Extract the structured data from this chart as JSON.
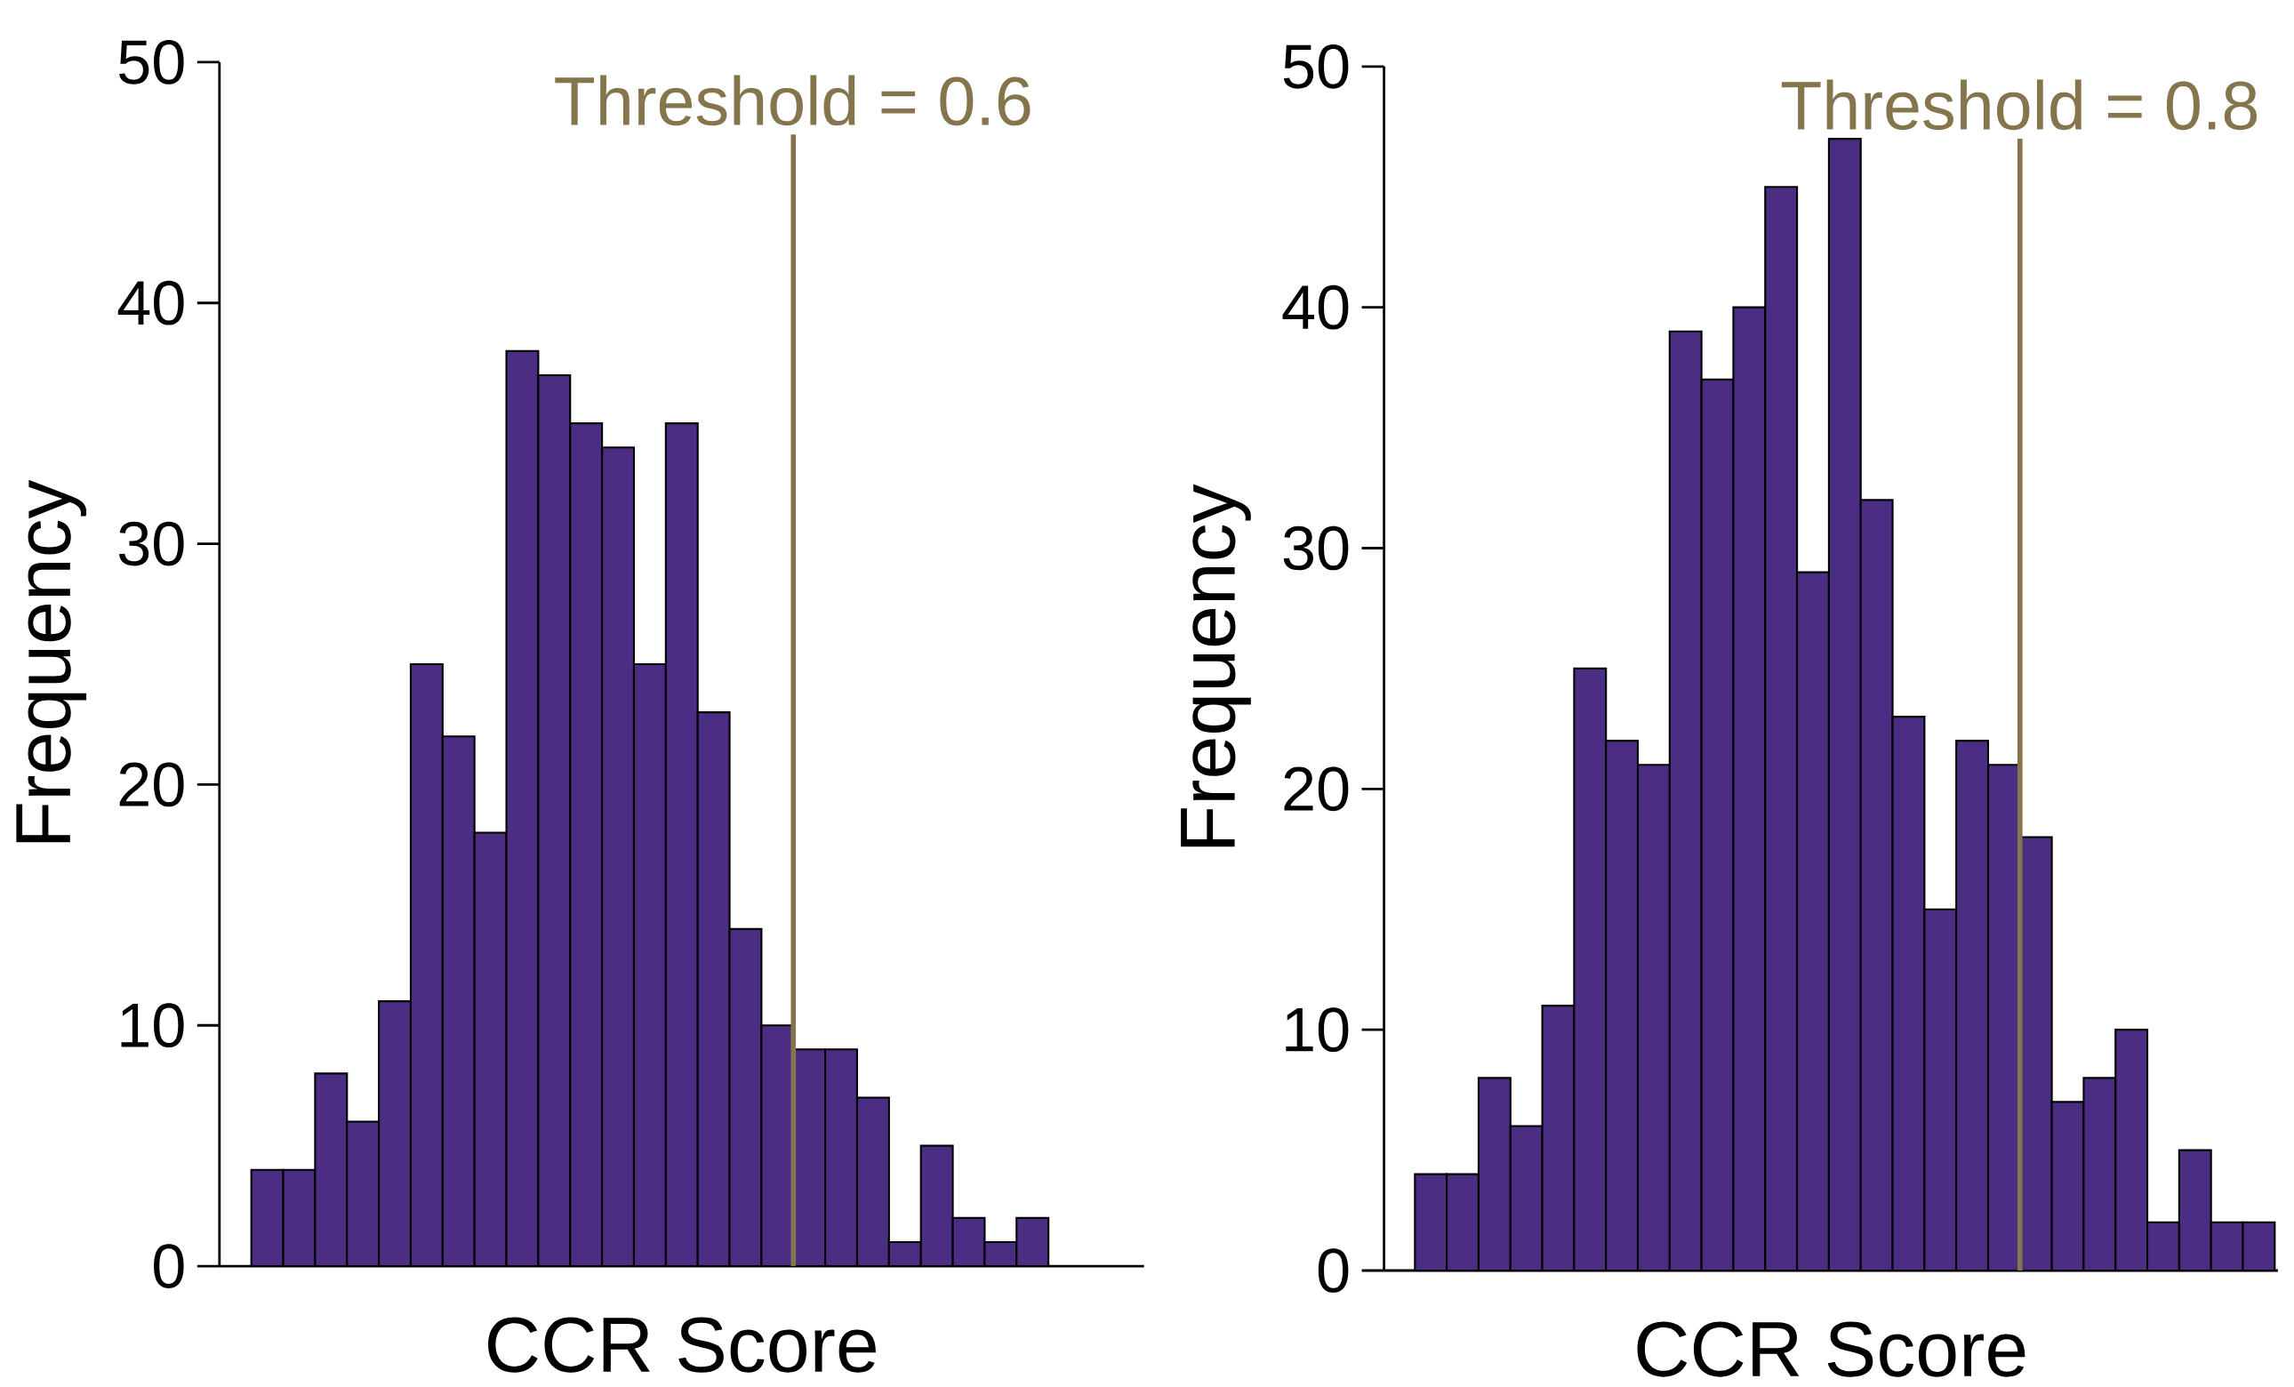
{
  "chart_data": [
    {
      "type": "bar",
      "xlabel": "CCR Score",
      "ylabel": "Frequency",
      "categories": [
        null,
        null,
        null,
        null,
        null,
        null,
        null,
        null,
        null,
        null,
        null,
        null,
        null,
        null,
        null,
        null,
        null,
        null,
        null,
        null,
        null,
        null,
        null,
        null,
        null
      ],
      "values": [
        4,
        4,
        8,
        6,
        11,
        25,
        22,
        18,
        38,
        37,
        35,
        34,
        25,
        35,
        23,
        14,
        10,
        9,
        9,
        7,
        1,
        5,
        2,
        1,
        2
      ],
      "color": "#4b2e83",
      "ylim": [
        0,
        50
      ],
      "yticks": [
        0,
        10,
        20,
        30,
        40,
        50
      ],
      "grid": false,
      "tick_labels": "y",
      "annotations": [
        "Threshold = 0.6"
      ]
    },
    {
      "type": "bar",
      "xlabel": "CCR Score",
      "ylabel": "Frequency",
      "categories": [
        null,
        null,
        null,
        null,
        null,
        null,
        null,
        null,
        null,
        null,
        null,
        null,
        null,
        null,
        null,
        null,
        null,
        null,
        null,
        null,
        null,
        null,
        null,
        null,
        null,
        null,
        null
      ],
      "values": [
        4,
        4,
        8,
        6,
        11,
        25,
        22,
        21,
        39,
        37,
        40,
        45,
        29,
        47,
        32,
        23,
        15,
        22,
        21,
        18,
        7,
        8,
        10,
        2,
        5,
        2,
        2
      ],
      "color": "#4b2e83",
      "ylim": [
        0,
        50
      ],
      "yticks": [
        0,
        10,
        20,
        30,
        40,
        50
      ],
      "grid": false,
      "tick_labels": "y",
      "annotations": [
        "Threshold = 0.8"
      ]
    }
  ]
}
